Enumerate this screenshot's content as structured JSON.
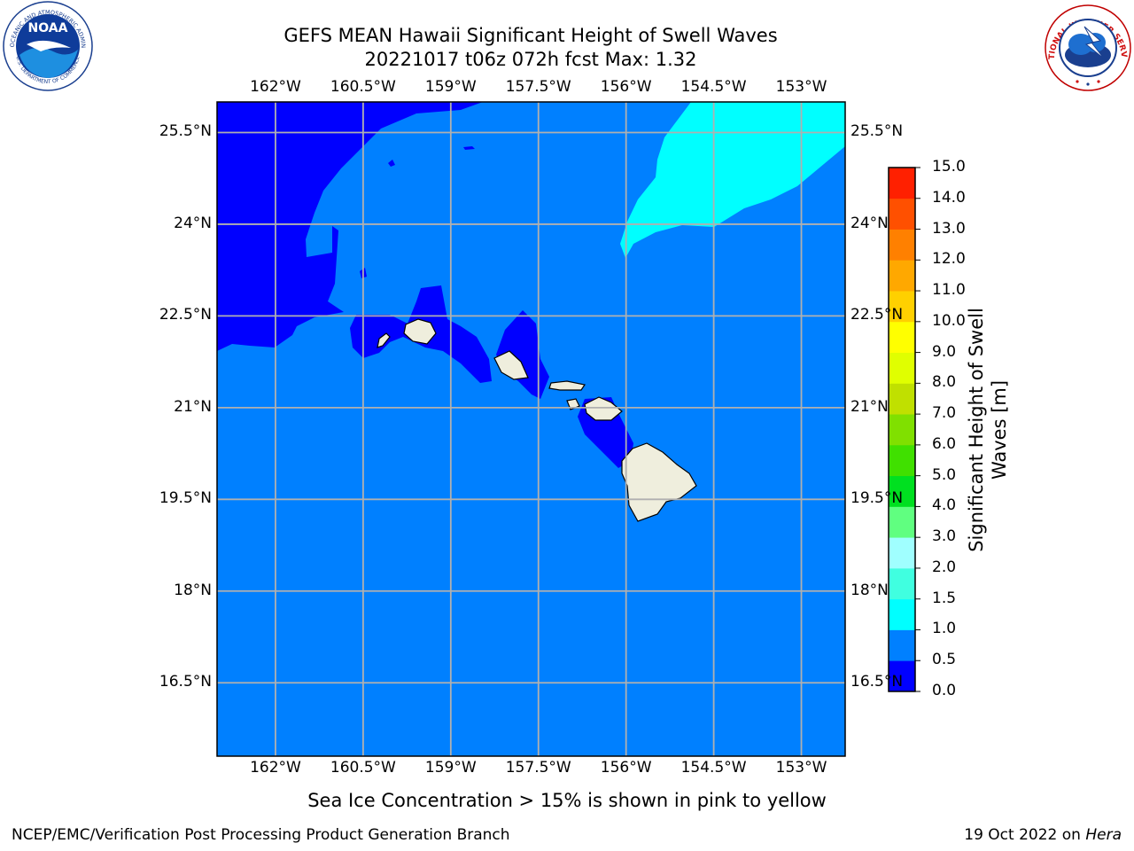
{
  "title_line1": "GEFS MEAN Hawaii Significant Height of Swell Waves",
  "title_line2": "20221017 t06z 072h fcst   Max: 1.32",
  "map": {
    "lon_labels": [
      "162°W",
      "160.5°W",
      "159°W",
      "157.5°W",
      "156°W",
      "154.5°W",
      "153°W"
    ],
    "lon_values": [
      -162,
      -160.5,
      -159,
      -157.5,
      -156,
      -154.5,
      -153
    ],
    "lat_labels": [
      "25.5°N",
      "24°N",
      "22.5°N",
      "21°N",
      "19.5°N",
      "18°N",
      "16.5°N"
    ],
    "lat_values": [
      25.5,
      24,
      22.5,
      21,
      19.5,
      18,
      16.5
    ],
    "extent": {
      "lon_min": -163,
      "lon_max": -152.25,
      "lat_min": 15.3,
      "lat_max": 26
    },
    "colors": {
      "band_0_0_5": "#0000ff",
      "band_0_5_1_0": "#0080ff",
      "band_1_0_1_5": "#00ffff",
      "land": "#efeedd",
      "grid": "#b0b0b0"
    }
  },
  "colorbar": {
    "label_line1": "Significant Height of Swell",
    "label_line2": "Waves [m]",
    "ticks": [
      "0.0",
      "0.5",
      "1.0",
      "1.5",
      "2.0",
      "3.0",
      "4.0",
      "5.0",
      "6.0",
      "7.0",
      "8.0",
      "9.0",
      "10.0",
      "11.0",
      "12.0",
      "13.0",
      "14.0",
      "15.0"
    ],
    "segment_colors": [
      "#0000ff",
      "#0080ff",
      "#00ffff",
      "#40ffe0",
      "#a0ffff",
      "#60ff80",
      "#00e020",
      "#40e000",
      "#80e000",
      "#c0e000",
      "#e0ff00",
      "#ffff00",
      "#ffd000",
      "#ffa800",
      "#ff8000",
      "#ff5000",
      "#ff2000"
    ]
  },
  "note": "Sea Ice Concentration > 15% is shown in pink to yellow",
  "footer_left": "NCEP/EMC/Verification Post Processing Product Generation Branch",
  "footer_date": "19 Oct 2022 on ",
  "footer_host": "Hera",
  "logos": {
    "noaa_text": "NOAA",
    "noaa_ring": "NATIONAL OCEANIC AND ATMOSPHERIC ADMINISTRATION",
    "noaa_ring_bottom": "U.S. DEPARTMENT OF COMMERCE",
    "nws_ring": "NATIONAL WEATHER SERVICE"
  }
}
